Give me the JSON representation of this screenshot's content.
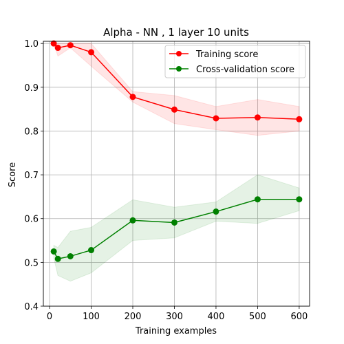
{
  "chart_data": {
    "type": "line",
    "title": "Alpha - NN , 1 layer 10 units",
    "xlabel": "Training examples",
    "ylabel": "Score",
    "xlim": [
      -15,
      625
    ],
    "ylim": [
      0.4,
      1.005
    ],
    "xticks": [
      0,
      100,
      200,
      300,
      400,
      500,
      600
    ],
    "xtick_labels": [
      "0",
      "100",
      "200",
      "300",
      "400",
      "500",
      "600"
    ],
    "yticks": [
      0.4,
      0.5,
      0.6,
      0.7,
      0.8,
      0.9,
      1.0
    ],
    "ytick_labels": [
      "0.4",
      "0.5",
      "0.6",
      "0.7",
      "0.8",
      "0.9",
      "1.0"
    ],
    "grid": true,
    "legend_position": "top-right",
    "x": [
      10,
      20,
      50,
      100,
      200,
      300,
      400,
      500,
      600
    ],
    "series": [
      {
        "name": "Training score",
        "color": "#ff0000",
        "fill": "#ff0000",
        "values": [
          1.0,
          0.99,
          0.996,
          0.98,
          0.878,
          0.849,
          0.829,
          0.831,
          0.827
        ],
        "lower": [
          1.0,
          0.971,
          0.99,
          0.948,
          0.866,
          0.817,
          0.803,
          0.79,
          0.8
        ],
        "upper": [
          1.0,
          1.0,
          1.0,
          1.0,
          0.89,
          0.881,
          0.856,
          0.872,
          0.856
        ]
      },
      {
        "name": "Cross-validation score",
        "color": "#008000",
        "fill": "#008000",
        "values": [
          0.525,
          0.508,
          0.514,
          0.528,
          0.596,
          0.591,
          0.616,
          0.644,
          0.644
        ],
        "lower": [
          0.51,
          0.47,
          0.457,
          0.476,
          0.55,
          0.556,
          0.594,
          0.589,
          0.618
        ],
        "upper": [
          0.539,
          0.534,
          0.571,
          0.58,
          0.643,
          0.626,
          0.638,
          0.7,
          0.67
        ]
      }
    ]
  }
}
